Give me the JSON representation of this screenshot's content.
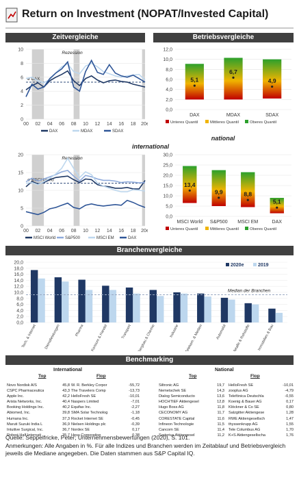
{
  "page": {
    "title": "Return on Investment (NOPAT/Invested Capital)"
  },
  "sections": {
    "zeitvergleiche": "Zeitvergleiche",
    "betriebsvergleiche": "Betriebsvergleiche",
    "national": "national",
    "international": "international",
    "branchenvergleiche": "Branchenvergleiche",
    "benchmarking": "Benchmarking"
  },
  "colors": {
    "header_bg": "#404040",
    "dark_blue": "#1f3864",
    "mid_blue": "#8eaadb",
    "light_blue": "#bdd7ee",
    "recession": "#d0d0d0",
    "median_line": "#2e4a7a",
    "quantile_low": "#c00000",
    "quantile_mid": "#f0b400",
    "quantile_high": "#2ca02c"
  },
  "chart_data": [
    {
      "id": "time_national",
      "type": "line",
      "x": [
        "00",
        "01",
        "02",
        "03",
        "04",
        "05",
        "06",
        "07",
        "08",
        "09",
        "10",
        "11",
        "12",
        "13",
        "14",
        "15",
        "16",
        "17",
        "18",
        "19",
        "20e"
      ],
      "xticks": [
        "00",
        "02",
        "04",
        "06",
        "08",
        "10",
        "12",
        "14",
        "16",
        "18",
        "20e"
      ],
      "ylim": [
        0,
        10
      ],
      "yticks": [
        0,
        2,
        4,
        6,
        8,
        10
      ],
      "recessions": [
        [
          1,
          3
        ],
        [
          8,
          9
        ],
        [
          19.5,
          20
        ]
      ],
      "annotations": {
        "recession": "Rezession",
        "median": "ø DAX"
      },
      "median_value": 5.3,
      "series": [
        {
          "name": "DAX",
          "color": "#1f3864",
          "values": [
            4.2,
            4.8,
            5.2,
            4.6,
            5.5,
            6.0,
            6.4,
            6.9,
            5.5,
            4.8,
            5.8,
            6.2,
            5.6,
            5.2,
            5.5,
            5.6,
            5.4,
            5.3,
            5.0,
            4.8,
            4.6
          ]
        },
        {
          "name": "MDAX",
          "color": "#bdd7ee",
          "values": [
            5.8,
            6.0,
            5.5,
            5.2,
            5.7,
            6.6,
            7.5,
            7.9,
            6.8,
            6.5,
            7.6,
            8.0,
            7.5,
            6.8,
            6.5,
            6.2,
            6.0,
            6.2,
            6.3,
            6.4,
            5.6
          ]
        },
        {
          "name": "SDAX",
          "color": "#2e5597",
          "values": [
            3.2,
            5.0,
            4.3,
            4.6,
            5.8,
            6.6,
            7.2,
            8.2,
            4.6,
            4.0,
            6.8,
            8.4,
            6.7,
            6.4,
            7.8,
            6.6,
            6.2,
            6.0,
            6.3,
            5.8,
            5.3
          ]
        }
      ]
    },
    {
      "id": "quantile_national",
      "type": "bar",
      "categories": [
        "DAX",
        "MDAX",
        "SDAX"
      ],
      "ylim": [
        0,
        12
      ],
      "yticks": [
        "0,0",
        "2,0",
        "4,0",
        "6,0",
        "8,0",
        "10,0",
        "12,0"
      ],
      "ytick_values": [
        0,
        2,
        4,
        6,
        8,
        10,
        12
      ],
      "lower_quantile": [
        2.0,
        2.0,
        2.2
      ],
      "median": [
        5.1,
        6.7,
        4.9
      ],
      "median_labels": [
        "5,1",
        "6,7",
        "4,9"
      ],
      "upper_quantile": [
        9.1,
        10.3,
        10.0
      ],
      "legend": [
        "Unteres Quantil",
        "Mittleres Quantil",
        "Oberes Quantil"
      ]
    },
    {
      "id": "time_international",
      "type": "line",
      "x": [
        "00",
        "01",
        "02",
        "03",
        "04",
        "05",
        "06",
        "07",
        "08",
        "09",
        "10",
        "11",
        "12",
        "13",
        "14",
        "15",
        "16",
        "17",
        "18",
        "19",
        "20e"
      ],
      "xticks": [
        "00",
        "02",
        "04",
        "06",
        "08",
        "10",
        "12",
        "14",
        "16",
        "18",
        "20e"
      ],
      "ylim": [
        0,
        20
      ],
      "yticks": [
        0,
        5,
        10,
        15,
        20
      ],
      "recessions": [
        [
          1,
          3
        ],
        [
          8,
          9
        ],
        [
          19.5,
          20
        ]
      ],
      "annotations": {
        "recession": "Rezession",
        "median": "ø MSCI World"
      },
      "median_value": 12.0,
      "series": [
        {
          "name": "MSCI World",
          "color": "#1f3864",
          "values": [
            11.0,
            12.5,
            11.8,
            12.2,
            13.0,
            13.6,
            13.8,
            14.0,
            13.0,
            12.2,
            13.2,
            13.0,
            11.6,
            11.2,
            11.0,
            10.6,
            10.6,
            10.8,
            10.4,
            10.4,
            12.8
          ]
        },
        {
          "name": "S&P500",
          "color": "#8eaadb",
          "values": [
            12.4,
            13.4,
            12.6,
            13.2,
            13.8,
            14.4,
            15.2,
            15.6,
            14.0,
            12.6,
            14.2,
            13.8,
            13.2,
            12.8,
            12.8,
            12.6,
            12.2,
            12.4,
            12.3,
            12.1,
            12.2
          ]
        },
        {
          "name": "MSCI EM",
          "color": "#bdd7ee",
          "values": [
            12.0,
            12.2,
            11.6,
            12.4,
            13.4,
            14.6,
            16.2,
            19.0,
            16.2,
            13.6,
            15.2,
            14.4,
            12.0,
            11.2,
            10.6,
            10.0,
            9.6,
            9.6,
            10.2,
            10.0,
            9.8
          ]
        },
        {
          "name": "DAX",
          "color": "#2e5597",
          "values": [
            4.0,
            3.6,
            3.2,
            3.8,
            4.8,
            5.2,
            5.8,
            6.4,
            5.2,
            4.8,
            5.8,
            6.2,
            5.8,
            5.6,
            5.8,
            6.0,
            5.8,
            7.2,
            6.6,
            5.8,
            5.2
          ]
        }
      ]
    },
    {
      "id": "quantile_international",
      "type": "bar",
      "categories": [
        "MSCI World",
        "S&P500",
        "MSCI EM",
        "DAX"
      ],
      "ylim": [
        0,
        30
      ],
      "yticks": [
        "0,0",
        "5,0",
        "10,0",
        "15,0",
        "20,0",
        "25,0",
        "30,0"
      ],
      "ytick_values": [
        0,
        5,
        10,
        15,
        20,
        25,
        30
      ],
      "lower_quantile": [
        6.5,
        5.0,
        4.5,
        1.5
      ],
      "median": [
        13.4,
        9.9,
        8.8,
        5.1
      ],
      "median_labels": [
        "13,4",
        "9,9",
        "8,8",
        "5,1"
      ],
      "upper_quantile": [
        24.5,
        22.5,
        21.5,
        9.0
      ],
      "legend": [
        "Unteres Quantil",
        "Mittleres Quantil",
        "Oberes Quantil"
      ]
    },
    {
      "id": "industry",
      "type": "bar",
      "categories": [
        "Tech. & Internet",
        "Dienstleistungen",
        "Pharma",
        "Konsum & Handel",
        "Transport",
        "Bergbau & Chemie",
        "Industrie",
        "Telekom. & Medien",
        "Automobil",
        "Metalle & Rohstoffe",
        "Immobilien & Bau"
      ],
      "ylim": [
        0,
        20
      ],
      "yticks": [
        "0,0",
        "2,0",
        "4,0",
        "6,0",
        "8,0",
        "10,0",
        "12,0",
        "14,0",
        "16,0",
        "18,0",
        "20,0"
      ],
      "ytick_values": [
        0,
        2,
        4,
        6,
        8,
        10,
        12,
        14,
        16,
        18,
        20
      ],
      "median_value": 9.2,
      "median_label": "Median der Branchen",
      "series": [
        {
          "name": "2020e",
          "color": "#1f3864",
          "values": [
            17.4,
            15.0,
            14.2,
            12.2,
            11.6,
            10.8,
            10.0,
            9.6,
            8.2,
            6.4,
            4.6
          ]
        },
        {
          "name": "2019",
          "color": "#bdd7ee",
          "values": [
            14.6,
            13.6,
            10.8,
            10.8,
            9.6,
            8.8,
            9.6,
            8.6,
            7.6,
            6.0,
            3.2
          ]
        }
      ]
    }
  ],
  "benchmarking": {
    "international": {
      "title": "International",
      "top_label": "Top",
      "flop_label": "Flop",
      "top": [
        [
          "Novo Nordisk A/S",
          "45,8"
        ],
        [
          "CSPC Pharmaceutica",
          "43,3"
        ],
        [
          "Apple Inc.",
          "42,2"
        ],
        [
          "Arista Networks, Inc.",
          "40,4"
        ],
        [
          "Booking Holdings Inc.",
          "40,2"
        ],
        [
          "Abiomed, Inc.",
          "39,8"
        ],
        [
          "Humana Inc.",
          "37,3"
        ],
        [
          "Maruti Suzuki India L",
          "36,9"
        ],
        [
          "Intuitive Surgical, Inc.",
          "36,7"
        ],
        [
          "Robert Half Internati",
          "35,7"
        ]
      ],
      "flop": [
        [
          "W. R. Berkley Corpor",
          "-55,72"
        ],
        [
          "The Travelers Comp",
          "-13,73"
        ],
        [
          "HelloFresh SE",
          "-10,01"
        ],
        [
          "Naspers Limited",
          "-7,01"
        ],
        [
          "Equifax Inc.",
          "-2,27"
        ],
        [
          "SMA Solar Technolog",
          "-1,18"
        ],
        [
          "Rocket Internet SE",
          "-0,45"
        ],
        [
          "Nielsen Holdings plc",
          "-0,39"
        ],
        [
          "Nordex SE",
          "0,17"
        ],
        [
          "Hess Corporation",
          "0,38"
        ]
      ]
    },
    "national": {
      "title": "National",
      "top_label": "Top",
      "flop_label": "Flop",
      "top": [
        [
          "Siltronic AG",
          "19,7"
        ],
        [
          "Nemetschek SE",
          "14,3"
        ],
        [
          "Dialog Semiconducto",
          "13,6"
        ],
        [
          "HOCHTIEF Aktiengesel",
          "12,8"
        ],
        [
          "Hugo Boss AG",
          "11,8"
        ],
        [
          "CECONOMY AG",
          "11,7"
        ],
        [
          "CORESTATE Capital",
          "11,6"
        ],
        [
          "Infineon Technologie",
          "11,5"
        ],
        [
          "Cancom SE",
          "11,4"
        ],
        [
          "Sartorius Aktiengesel",
          "11,2"
        ]
      ],
      "flop": [
        [
          "HelloFresh SE",
          "-10,01"
        ],
        [
          "zooplus AG",
          "-4,79"
        ],
        [
          "Telefónica Deutschla",
          "-0,55"
        ],
        [
          "Koenig & Bauer AG",
          "0,17"
        ],
        [
          "Klöckner & Co SE",
          "0,80"
        ],
        [
          "Salzgitter Aktiengese",
          "1,28"
        ],
        [
          "RWE Aktiengesellsch",
          "1,47"
        ],
        [
          "thyssenkrupp AG",
          "1,55"
        ],
        [
          "Tele Columbus AG",
          "1,70"
        ],
        [
          "K+S Aktiengesellscha",
          "1,76"
        ]
      ]
    }
  },
  "notes": {
    "source": "Quelle: Seppelfricke, Peter; Unternehmensbewertungen (2020), S. 101.",
    "remarks": "Anmerkungen: Alle Angaben in %. Für alle Indizes und Branchen werden im Zeitablauf und Betriebsvergleich jeweils die Mediane angegeben. Die Daten stammen aus S&P Capital IQ."
  }
}
